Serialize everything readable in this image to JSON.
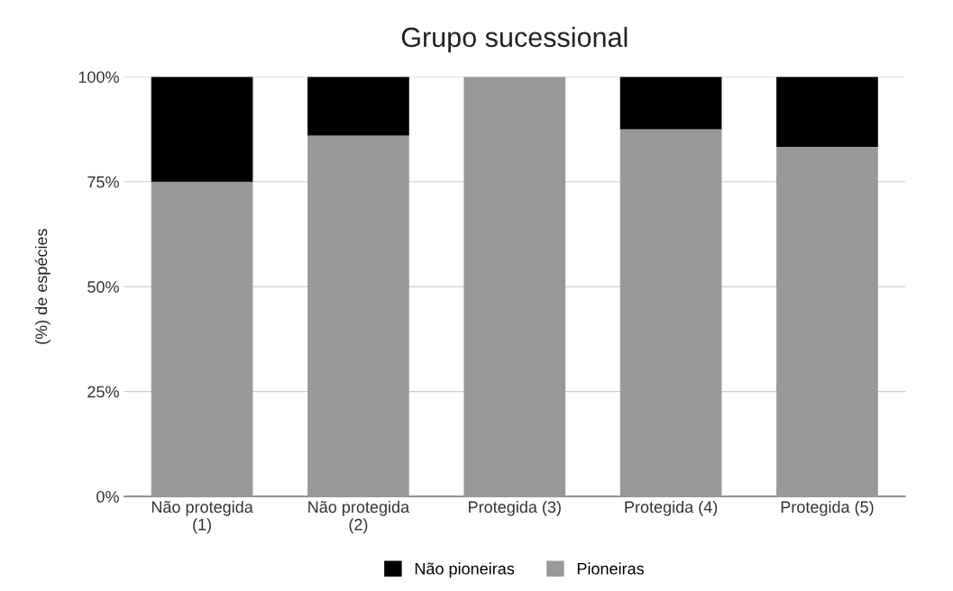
{
  "chart_data": {
    "type": "bar",
    "title": "Grupo sucessional",
    "ylabel": "(%) de espécies",
    "categories": [
      "Não protegida\n(1)",
      "Não protegida\n(2)",
      "Protegida (3)",
      "Protegida (4)",
      "Protegida (5)"
    ],
    "stacked": true,
    "series": [
      {
        "name": "Pioneiras",
        "color": "#999999",
        "values": [
          75,
          86,
          100,
          87.5,
          83.3
        ]
      },
      {
        "name": "Não pioneiras",
        "color": "#000000",
        "values": [
          25,
          14,
          0,
          12.5,
          16.7
        ]
      }
    ],
    "ylim": [
      0,
      100
    ],
    "yticks": [
      {
        "value": 0,
        "label": "0%"
      },
      {
        "value": 25,
        "label": "25%"
      },
      {
        "value": 50,
        "label": "50%"
      },
      {
        "value": 75,
        "label": "75%"
      },
      {
        "value": 100,
        "label": "100%"
      }
    ],
    "grid": "y",
    "legend": "bottom"
  }
}
